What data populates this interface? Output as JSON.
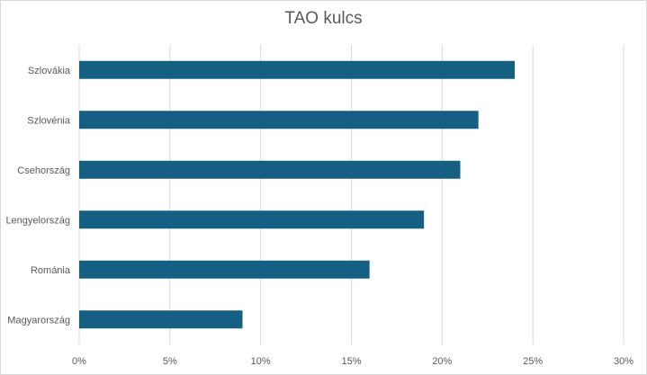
{
  "chart_data": {
    "type": "bar",
    "orientation": "horizontal",
    "title": "TAO kulcs",
    "categories": [
      "Szlovákia",
      "Szlovénia",
      "Csehország",
      "Lengyelország",
      "Románia",
      "Magyarország"
    ],
    "values": [
      24,
      22,
      21,
      19,
      16,
      9
    ],
    "value_unit": "%",
    "xlim": [
      0,
      30
    ],
    "x_ticks": [
      "0%",
      "5%",
      "10%",
      "15%",
      "20%",
      "25%",
      "30%"
    ],
    "grid": "vertical",
    "bar_color": "#156082",
    "grid_color": "#d9d9d9"
  }
}
